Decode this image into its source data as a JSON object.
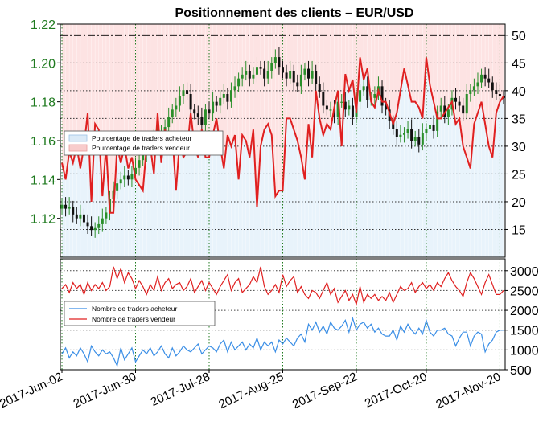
{
  "title": "Positionnement des clients – EUR/USD",
  "chart_data": [
    {
      "type": "candlestick+line",
      "panel": "top",
      "left_axis": {
        "ylim": [
          1.1,
          1.22
        ],
        "ticks": [
          "1.22",
          "1.20",
          "1.18",
          "1.16",
          "1.14",
          "1.12"
        ]
      },
      "right_axis": {
        "ylim": [
          10,
          52
        ],
        "ticks": [
          "50",
          "45",
          "40",
          "35",
          "30",
          "25",
          "20",
          "15"
        ]
      },
      "reference_line": 50,
      "legend": {
        "placement": "left-middle",
        "entries": [
          "Pourcentage de traders acheteur",
          "Pourcentage de traders vendeur"
        ]
      },
      "series": [
        {
          "name": "Pourcentage de traders vendeur",
          "axis": "right",
          "values": [
            27,
            24,
            29,
            27,
            30,
            26,
            30,
            36,
            20,
            34,
            33,
            21,
            30,
            18,
            18,
            30,
            27,
            30,
            26,
            28,
            24,
            23,
            22,
            30,
            30,
            25,
            36,
            27,
            33,
            30,
            32,
            22,
            31,
            28,
            29,
            36,
            30,
            28,
            33,
            28,
            28,
            32,
            35,
            30,
            26,
            32,
            30,
            32,
            24,
            32,
            31,
            28,
            33,
            19,
            30,
            33,
            34,
            32,
            21,
            22,
            22,
            35,
            35,
            33,
            31,
            28,
            24,
            34,
            28,
            40,
            35,
            32,
            34,
            33,
            37,
            40,
            30,
            43,
            40,
            42,
            36,
            46,
            42,
            44,
            38,
            37,
            40,
            38,
            38,
            36,
            34,
            36,
            40,
            44,
            41,
            38,
            38,
            37,
            35,
            46,
            41,
            38,
            35,
            35,
            36,
            37,
            38,
            34,
            35,
            30,
            28,
            26,
            34,
            36,
            38,
            34,
            30,
            28,
            36,
            38,
            39
          ]
        },
        {
          "name": "Pourcentage de traders acheteur",
          "axis": "right",
          "style": "band",
          "values": [
            14,
            12,
            13,
            11,
            12,
            14,
            12,
            13,
            12,
            13,
            14,
            12,
            13,
            14,
            12,
            13,
            12,
            14,
            12,
            13,
            11,
            12,
            12,
            13,
            13,
            11,
            12,
            12,
            14,
            13,
            12,
            11,
            12,
            13,
            13,
            12,
            12,
            13,
            12,
            12,
            13,
            13,
            12,
            11,
            13,
            12,
            12,
            11,
            12,
            12,
            12,
            13,
            12,
            12,
            11,
            12,
            13,
            12,
            12,
            13,
            12,
            12,
            11,
            12,
            12,
            12,
            13,
            12,
            13,
            12,
            12,
            12,
            12,
            12,
            12,
            13,
            12,
            12,
            12,
            11,
            12,
            12,
            13,
            12,
            12,
            12,
            12,
            11,
            12,
            12,
            12,
            13,
            12,
            12,
            12,
            12,
            12,
            12,
            11,
            12,
            13,
            12,
            12,
            12,
            12,
            12,
            12,
            12,
            12,
            11,
            12,
            12,
            12,
            13,
            12,
            12,
            12,
            12,
            12,
            12,
            12
          ]
        },
        {
          "name": "EUR/USD",
          "axis": "left",
          "style": "candles",
          "close": [
            1.127,
            1.125,
            1.126,
            1.122,
            1.12,
            1.122,
            1.118,
            1.116,
            1.114,
            1.115,
            1.117,
            1.12,
            1.123,
            1.13,
            1.134,
            1.138,
            1.14,
            1.142,
            1.14,
            1.143,
            1.146,
            1.15,
            1.153,
            1.156,
            1.16,
            1.162,
            1.164,
            1.165,
            1.167,
            1.172,
            1.176,
            1.178,
            1.183,
            1.186,
            1.184,
            1.176,
            1.174,
            1.172,
            1.168,
            1.176,
            1.174,
            1.18,
            1.178,
            1.182,
            1.184,
            1.18,
            1.186,
            1.188,
            1.192,
            1.194,
            1.196,
            1.192,
            1.194,
            1.198,
            1.197,
            1.192,
            1.196,
            1.2,
            1.203,
            1.198,
            1.195,
            1.192,
            1.196,
            1.19,
            1.188,
            1.194,
            1.197,
            1.192,
            1.196,
            1.189,
            1.185,
            1.178,
            1.176,
            1.176,
            1.172,
            1.18,
            1.18,
            1.176,
            1.178,
            1.172,
            1.18,
            1.186,
            1.188,
            1.181,
            1.182,
            1.184,
            1.188,
            1.178,
            1.176,
            1.17,
            1.166,
            1.162,
            1.163,
            1.164,
            1.166,
            1.16,
            1.162,
            1.158,
            1.164,
            1.166,
            1.168,
            1.165,
            1.175,
            1.178,
            1.172,
            1.176,
            1.182,
            1.18,
            1.178,
            1.174,
            1.184,
            1.186,
            1.188,
            1.19,
            1.194,
            1.192,
            1.19,
            1.186,
            1.184,
            1.183,
            1.182
          ]
        }
      ],
      "right_axis_gridlines": [
        50,
        45,
        40,
        35,
        30,
        25,
        20,
        15
      ]
    },
    {
      "type": "line",
      "panel": "bottom",
      "right_axis": {
        "ylim": [
          500,
          3300
        ],
        "ticks": [
          "3000",
          "2500",
          "2000",
          "1500",
          "1000",
          "500"
        ]
      },
      "legend": {
        "placement": "left-middle",
        "entries": [
          "Nombre de traders acheteur",
          "Nombre de traders vendeur"
        ]
      },
      "x_ticks": [
        "2017-Jun-02",
        "2017-Jun-30",
        "2017-Jul-28",
        "2017-Aug-25",
        "2017-Sep-22",
        "2017-Oct-20",
        "2017-Nov-20"
      ],
      "series": [
        {
          "name": "Nombre de traders acheteur",
          "values": [
            900,
            1050,
            800,
            950,
            850,
            1050,
            900,
            700,
            1100,
            950,
            850,
            1000,
            900,
            950,
            800,
            600,
            1050,
            750,
            900,
            1050,
            700,
            850,
            1000,
            900,
            1050,
            850,
            950,
            1100,
            900,
            800,
            1050,
            850,
            950,
            1100,
            1000,
            950,
            1050,
            1150,
            900,
            1000,
            1100,
            1050,
            950,
            1150,
            1250,
            950,
            1200,
            1000,
            1100,
            1200,
            1000,
            1150,
            1050,
            1300,
            1000,
            1200,
            1100,
            1200,
            950,
            1250,
            1150,
            1300,
            1200,
            1100,
            1300,
            1400,
            1200,
            1650,
            1500,
            1700,
            1450,
            1600,
            1400,
            1700,
            1550,
            1500,
            1600,
            1750,
            1450,
            1800,
            1500,
            1650,
            1700,
            1550,
            1650,
            1450,
            1550,
            1400,
            1350,
            1350,
            1500,
            1250,
            1600,
            1450,
            1650,
            1500,
            1400,
            1550,
            1400,
            1750,
            1450,
            1350,
            1500,
            1500,
            1550,
            1400,
            1350,
            1100,
            1300,
            1450,
            1450,
            1100,
            1350,
            1450,
            1400,
            950,
            1150,
            1250,
            1450,
            1500,
            1500
          ]
        },
        {
          "name": "Nombre de traders vendeur",
          "values": [
            2550,
            2650,
            2450,
            2700,
            2550,
            2650,
            2400,
            2700,
            2500,
            2650,
            2550,
            2700,
            2500,
            2600,
            3100,
            2800,
            3050,
            2700,
            2950,
            2800,
            2550,
            2750,
            2600,
            2400,
            2650,
            2500,
            2850,
            2500,
            2700,
            2800,
            2550,
            2650,
            2700,
            2500,
            2600,
            2800,
            2450,
            2600,
            2750,
            2500,
            2700,
            2550,
            2400,
            2600,
            2750,
            2900,
            2500,
            2700,
            2800,
            2450,
            2550,
            2650,
            2850,
            2700,
            3100,
            2600,
            2400,
            2500,
            2650,
            2450,
            2900,
            2600,
            2750,
            2850,
            2450,
            2600,
            2400,
            2300,
            2500,
            2450,
            2300,
            2500,
            2700,
            2400,
            2550,
            2200,
            2350,
            2500,
            2250,
            2400,
            2150,
            2600,
            2200,
            2400,
            2300,
            2400,
            2250,
            2350,
            2250,
            2450,
            2200,
            2400,
            2600,
            2500,
            2550,
            2700,
            2450,
            2600,
            2700,
            2550,
            2650,
            2500,
            2700,
            2600,
            2800,
            2950,
            2750,
            2600,
            2500,
            2350,
            2700,
            2950,
            2800,
            2600,
            2400,
            2700,
            2900,
            2650,
            2400,
            2400,
            2500
          ]
        }
      ]
    }
  ],
  "colors": {
    "green": "#1f7a1f",
    "red": "#e02020",
    "blue": "#3a8ee6",
    "sell_band": "#fde3e3",
    "buy_band": "#e8f3fb",
    "candle_up": "#2a8f2a",
    "candle_down": "#111111"
  }
}
